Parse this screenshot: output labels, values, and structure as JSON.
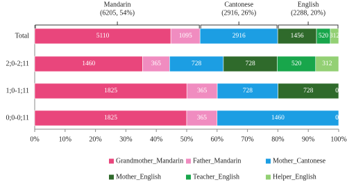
{
  "chart_data": {
    "type": "stacked-percent-bar",
    "orientation": "horizontal",
    "categories": [
      "Total",
      "2;0-2;11",
      "1;0-1;11",
      "0;0-0;11"
    ],
    "series": [
      {
        "name": "Grandmother_Mandarin",
        "color": "#e9467c",
        "values": [
          5110,
          1460,
          1825,
          1825
        ]
      },
      {
        "name": "Father_Mandarin",
        "color": "#f08cc0",
        "values": [
          1095,
          365,
          365,
          365
        ]
      },
      {
        "name": "Mother_Cantonese",
        "color": "#1c9ee3",
        "values": [
          2916,
          728,
          728,
          1460
        ]
      },
      {
        "name": "Mother_English",
        "color": "#2f6a2b",
        "values": [
          1456,
          728,
          728,
          0
        ]
      },
      {
        "name": "Teacher_English",
        "color": "#18a64b",
        "values": [
          520,
          520,
          0,
          0
        ]
      },
      {
        "name": "Helper_English",
        "color": "#93d074",
        "values": [
          312,
          312,
          0,
          0
        ]
      }
    ],
    "xlim": [
      0,
      100
    ],
    "xticks": [
      {
        "value": 0,
        "label": "0%"
      },
      {
        "value": 10,
        "label": "10%"
      },
      {
        "value": 20,
        "label": "20%"
      },
      {
        "value": 30,
        "label": "30%"
      },
      {
        "value": 40,
        "label": "40%"
      },
      {
        "value": 50,
        "label": "50%"
      },
      {
        "value": 60,
        "label": "60%"
      },
      {
        "value": 70,
        "label": "70%"
      },
      {
        "value": 80,
        "label": "80%"
      },
      {
        "value": 90,
        "label": "90%"
      },
      {
        "value": 100,
        "label": "100%"
      }
    ],
    "annotations": [
      {
        "label": "Mandarin",
        "detail": "(6205, 54%)"
      },
      {
        "label": "Cantonese",
        "detail": "(2916, 26%)"
      },
      {
        "label": "English",
        "detail": "(2288, 20%)"
      }
    ],
    "legend": "bottom"
  }
}
